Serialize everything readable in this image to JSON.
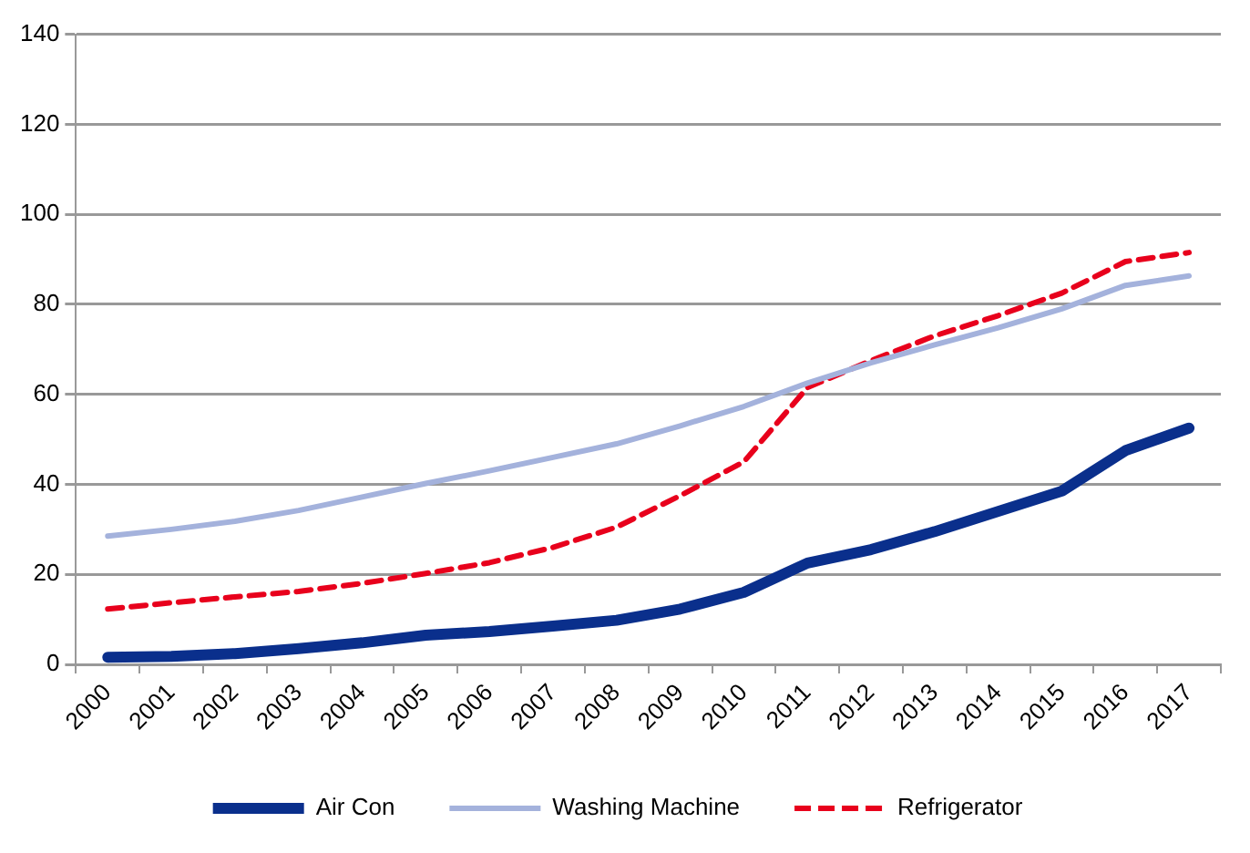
{
  "chart_data": {
    "type": "line",
    "categories": [
      "2000",
      "2001",
      "2002",
      "2003",
      "2004",
      "2005",
      "2006",
      "2007",
      "2008",
      "2009",
      "2010",
      "2011",
      "2012",
      "2013",
      "2014",
      "2015",
      "2016",
      "2017"
    ],
    "series": [
      {
        "name": "Air Con",
        "color": "#0a2f8c",
        "line_style": "solid",
        "values": [
          1.6,
          1.8,
          2.4,
          3.5,
          4.8,
          6.5,
          7.3,
          8.5,
          9.8,
          12.3,
          16,
          22.5,
          25.5,
          29.5,
          34,
          38.5,
          47.5,
          52.5
        ]
      },
      {
        "name": "Washing Machine",
        "color": "#a4b2dc",
        "line_style": "solid",
        "values": [
          28.5,
          30,
          31.8,
          34.2,
          37.2,
          40.2,
          43,
          46,
          49,
          53,
          57.3,
          62.5,
          67,
          71,
          74.8,
          79,
          84.2,
          86.3
        ]
      },
      {
        "name": "Refrigerator",
        "color": "#e8001c",
        "line_style": "dashed",
        "values": [
          12.3,
          13.7,
          15,
          16.2,
          18,
          20.2,
          22.6,
          26,
          30.5,
          37.5,
          45,
          61.5,
          67.5,
          73,
          77.5,
          82.5,
          89.5,
          91.5
        ]
      }
    ],
    "ylim": [
      0,
      140
    ],
    "yticks": [
      0,
      20,
      40,
      60,
      80,
      100,
      120,
      140
    ],
    "grid": "y",
    "legend": "bottom",
    "marker": "none"
  }
}
